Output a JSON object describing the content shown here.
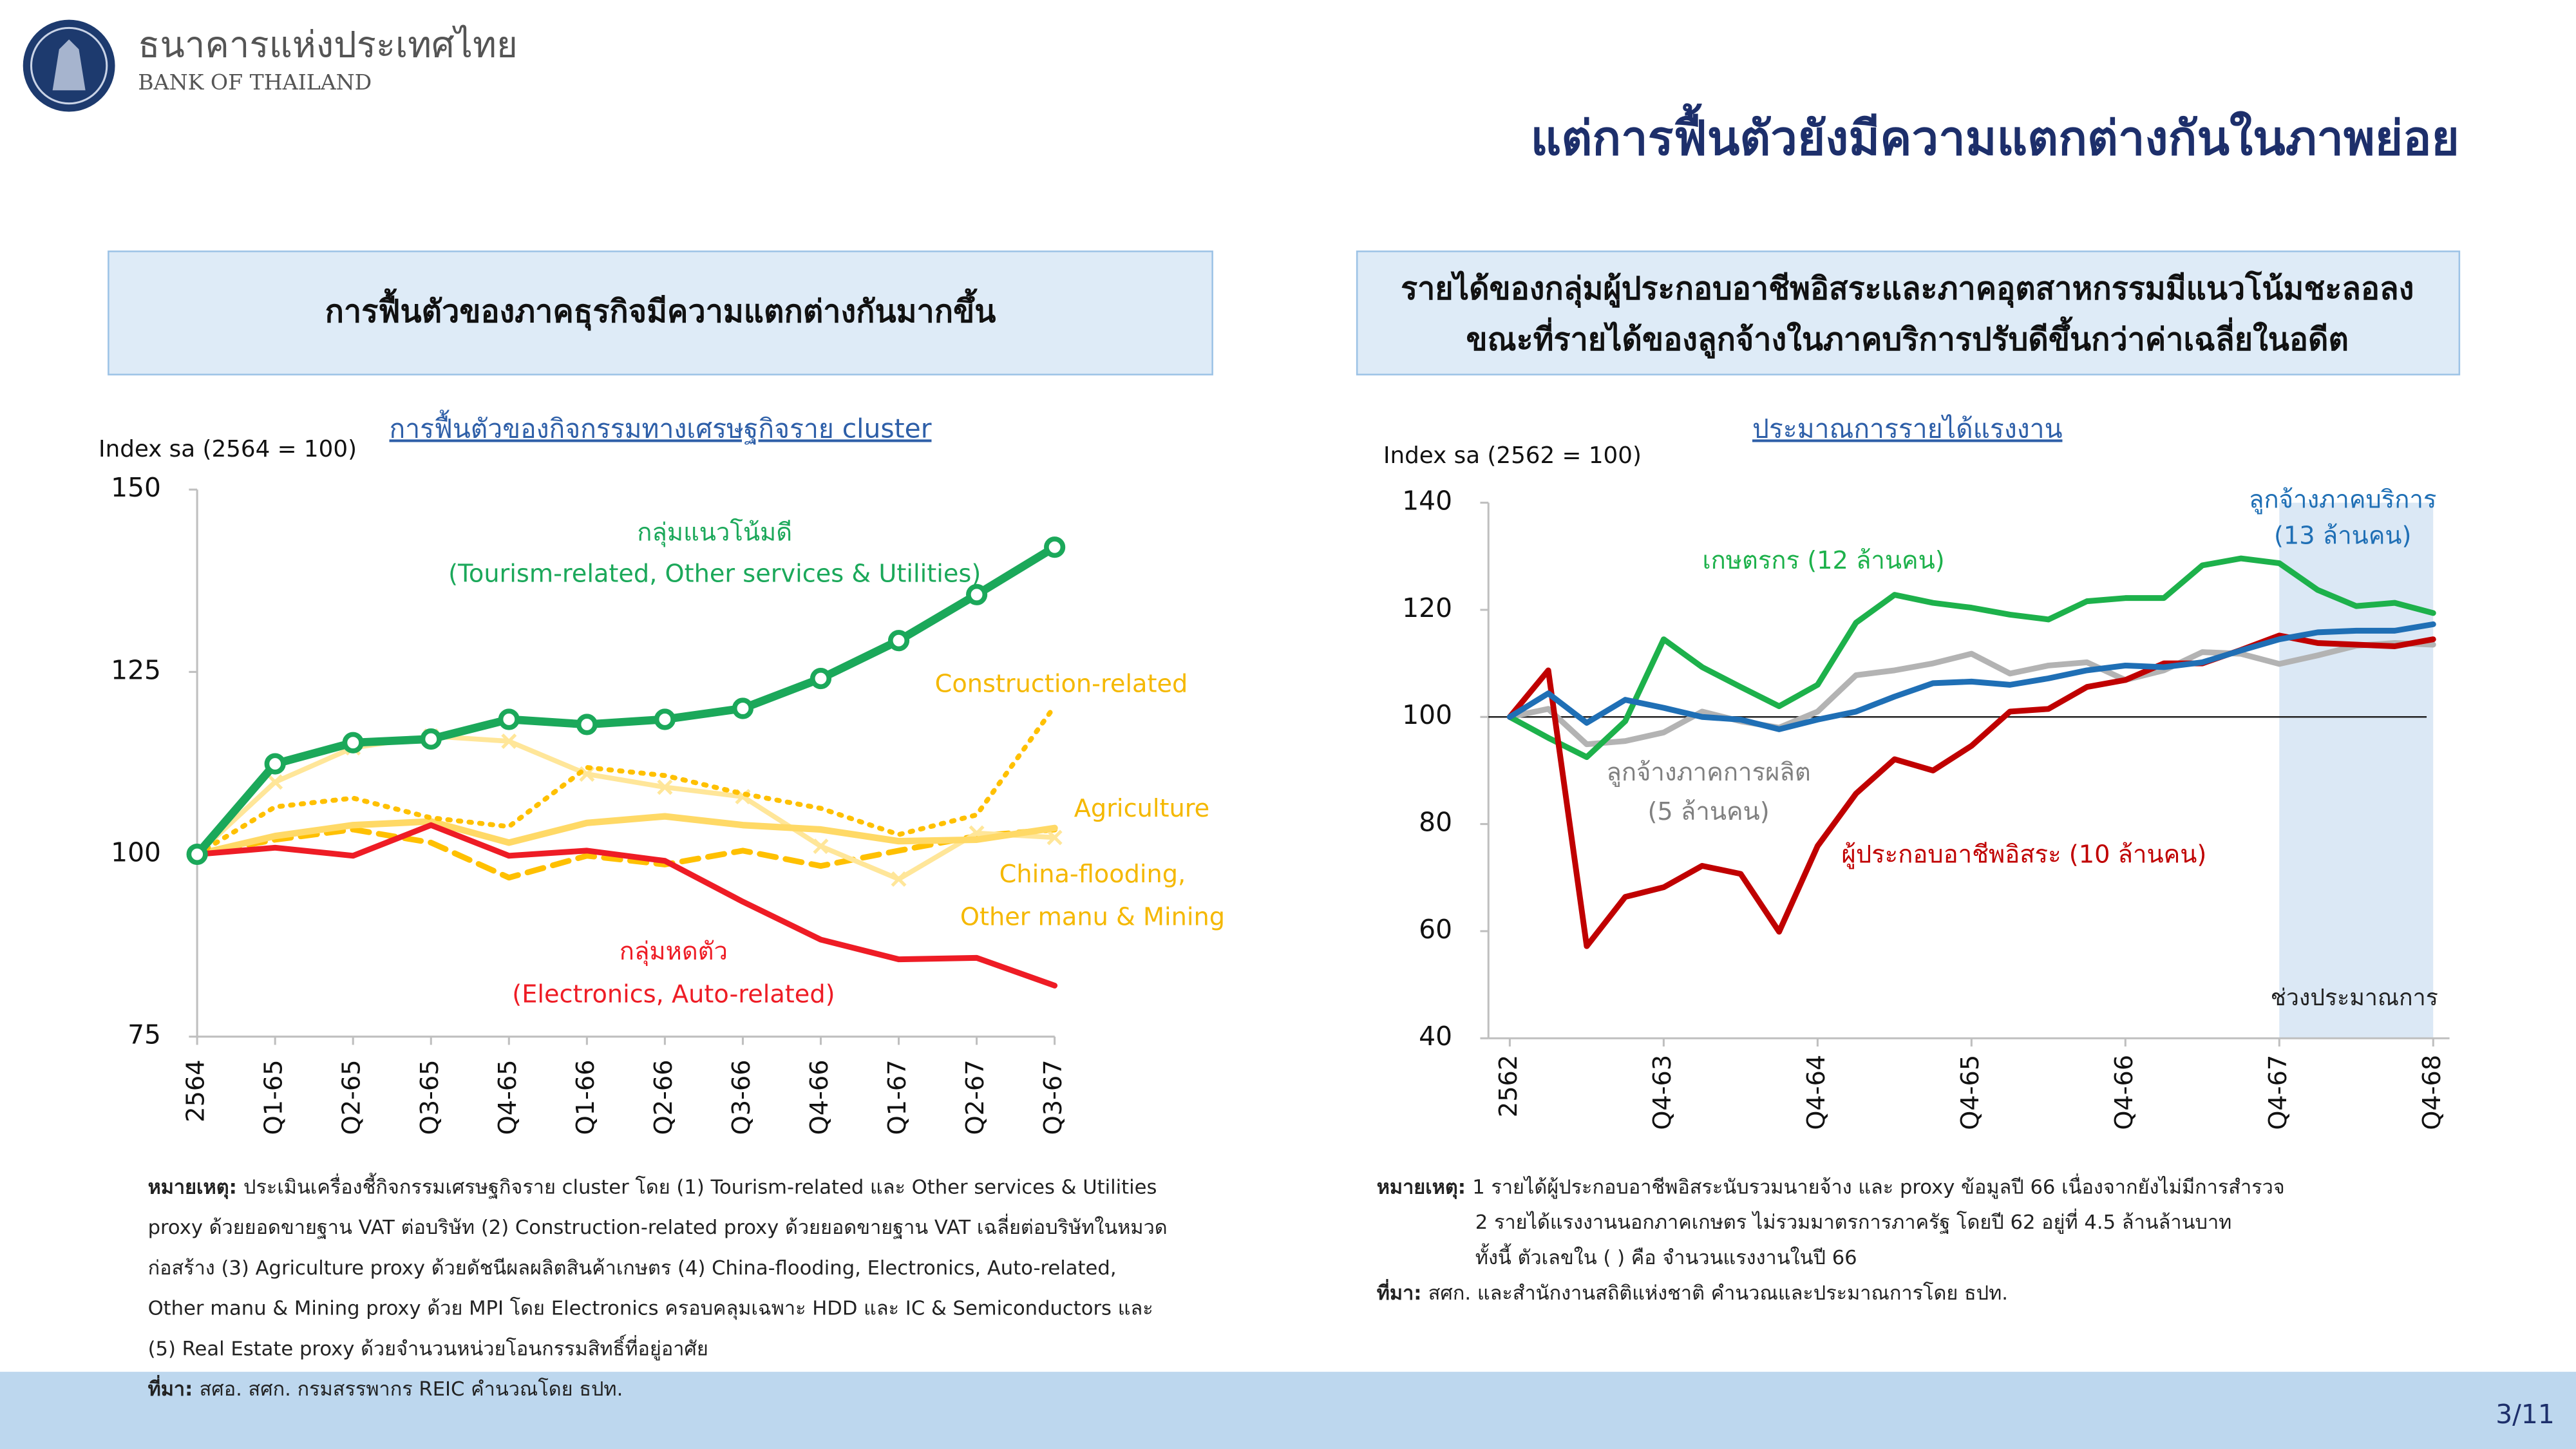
{
  "header": {
    "org_th": "ธนาคารแห่งประเทศไทย",
    "org_en": "BANK OF THAILAND",
    "title": "แต่การฟื้นตัวยังมีความแตกต่างกันในภาพย่อย"
  },
  "page_number": "3/11",
  "chart_data": [
    {
      "type": "line",
      "heading": [
        "การฟื้นตัวของภาคธุรกิจมีความแตกต่างกันมากขึ้น"
      ],
      "title": "การฟื้นตัวของกิจกรรมทางเศรษฐกิจราย cluster",
      "y_label": "Index sa (2564 = 100)",
      "categories": [
        "2564",
        "Q1-65",
        "Q2-65",
        "Q3-65",
        "Q4-65",
        "Q1-66",
        "Q2-66",
        "Q3-66",
        "Q4-66",
        "Q1-67",
        "Q2-67",
        "Q3-67"
      ],
      "ylim": [
        75,
        150
      ],
      "yticks": [
        75,
        100,
        125,
        150
      ],
      "series": [
        {
          "color": "#ffc000",
          "line_style": "dashed",
          "marker": "none",
          "values": [
            100,
            102,
            103.4,
            101.6,
            96.8,
            99.8,
            98.6,
            100.5,
            98.4,
            100.5,
            102.5,
            103.4
          ]
        },
        {
          "label": [
            "China-flooding,",
            "Other manu & Mining"
          ],
          "label_color": "#f5b800",
          "color": "#ffe699",
          "line_style": "solid",
          "marker": "x",
          "values": [
            100,
            109.9,
            114.6,
            116.2,
            115.5,
            111,
            109.2,
            107.9,
            101.1,
            96.6,
            102.9,
            102.3
          ]
        },
        {
          "label": [
            "Agriculture"
          ],
          "label_color": "#f5b800",
          "color": "#ffd966",
          "line_style": "solid",
          "marker": "none",
          "values": [
            100,
            102.5,
            104,
            104.5,
            101.6,
            104.3,
            105.2,
            104,
            103.4,
            101.8,
            102,
            103.6
          ]
        },
        {
          "label": [
            "Construction-related"
          ],
          "label_color": "#f5b800",
          "color": "#ffc000",
          "line_style": "dotted",
          "marker": "none",
          "values": [
            100,
            106.5,
            107.7,
            105,
            103.8,
            111.9,
            110.8,
            108.3,
            106.3,
            102.7,
            105.4,
            120.3
          ]
        },
        {
          "label": [
            "กลุ่มหดตัว",
            "(Electronics, Auto-related)"
          ],
          "label_color": "#ee1c25",
          "color": "#ee1c25",
          "line_style": "solid",
          "marker": "none",
          "values": [
            100,
            100.9,
            99.8,
            104,
            99.8,
            100.5,
            99.1,
            93.5,
            88.3,
            85.6,
            85.8,
            82
          ]
        },
        {
          "label": [
            "กลุ่มแนวโน้มดี",
            "(Tourism-related, Other services & Utilities)"
          ],
          "label_color": "#1ba85a",
          "color": "#1ba85a",
          "line_style": "solid",
          "marker": "circle",
          "values": [
            100,
            112.4,
            115.3,
            115.8,
            118.5,
            117.8,
            118.5,
            120,
            124.1,
            129.3,
            135.6,
            142.1
          ]
        }
      ],
      "notes": {
        "label": "หมายเหตุ:",
        "lines": [
          "ประเมินเครื่องชี้กิจกรรมเศรษฐกิจราย cluster โดย (1) Tourism-related และ Other services & Utilities",
          "proxy ด้วยยอดขายฐาน VAT ต่อบริษัท (2) Construction-related proxy ด้วยยอดขายฐาน VAT เฉลี่ยต่อบริษัทในหมวด",
          "ก่อสร้าง (3) Agriculture proxy ด้วยดัชนีผลผลิตสินค้าเกษตร  (4) China-flooding,  Electronics, Auto-related,",
          "Other manu & Mining proxy ด้วย MPI โดย Electronics ครอบคลุมเฉพาะ HDD และ IC & Semiconductors และ",
          "(5) Real Estate proxy ด้วยจำนวนหน่วยโอนกรรมสิทธิ์ที่อยู่อาศัย"
        ]
      },
      "source": {
        "label": "ที่มา:",
        "text": "สศอ. สศก. กรมสรรพากร REIC คำนวณโดย ธปท."
      }
    },
    {
      "type": "line",
      "heading": [
        "รายได้ของกลุ่มผู้ประกอบอาชีพอิสระและภาคอุตสาหกรรมมีแนวโน้มชะลอลง",
        "ขณะที่รายได้ของลูกจ้างในภาคบริการปรับดีขึ้นกว่าค่าเฉลี่ยในอดีต"
      ],
      "title": "ประมาณการรายได้แรงงาน",
      "y_label": "Index sa (2562 = 100)",
      "categories": [
        "2562",
        null,
        null,
        null,
        "Q4-63",
        null,
        null,
        null,
        "Q4-64",
        null,
        null,
        null,
        "Q4-65",
        null,
        null,
        null,
        "Q4-66",
        null,
        null,
        null,
        "Q4-67",
        null,
        null,
        null,
        "Q4-68"
      ],
      "ylim": [
        40,
        140
      ],
      "yticks": [
        40,
        60,
        80,
        100,
        120,
        140
      ],
      "reference_line": 100,
      "shade_from": "Q4-67",
      "shade_label": "ช่วงประมาณการ",
      "series": [
        {
          "label": [
            "ลูกจ้างภาคการผลิต",
            "(5 ล้านคน)"
          ],
          "label_color": "#808080",
          "color": "#b3b3b3",
          "values": [
            100,
            101.5,
            94.9,
            95.5,
            97.1,
            101,
            99.2,
            98,
            101,
            107.8,
            108.7,
            110,
            111.8,
            108.1,
            109.6,
            110.2,
            106.9,
            108.7,
            112.1,
            111.8,
            109.9,
            111.5,
            113.3,
            113.8,
            113.5
          ]
        },
        {
          "label": [
            "เกษตรกร (12 ล้านคน)"
          ],
          "label_color": "#1db14b",
          "color": "#1db14b",
          "values": [
            100,
            96.1,
            92.5,
            99.2,
            114.5,
            109.3,
            105.6,
            102,
            106,
            117.6,
            122.8,
            121.3,
            120.4,
            119.1,
            118.2,
            121.6,
            122.2,
            122.2,
            128.3,
            129.6,
            128.7,
            123.7,
            120.7,
            121.3,
            119.4
          ]
        },
        {
          "label": [
            "ผู้ประกอบอาชีพอิสระ (10 ล้านคน)"
          ],
          "label_color": "#c00000",
          "color": "#c00000",
          "values": [
            100,
            108.7,
            57.2,
            66.4,
            68.2,
            72.2,
            70.7,
            59.9,
            75.9,
            85.7,
            92.1,
            90,
            94.6,
            101,
            101.5,
            105.6,
            106.9,
            110,
            110,
            112.5,
            115.2,
            113.8,
            113.5,
            113.2,
            114.5
          ]
        },
        {
          "label": [
            "ลูกจ้างภาคบริการ",
            "(13 ล้านคน)"
          ],
          "label_color": "#1f6fb5",
          "color": "#1f6fb5",
          "values": [
            100,
            104.4,
            98.9,
            103.2,
            101.7,
            100,
            99.5,
            97.7,
            99.5,
            101,
            103.8,
            106.3,
            106.6,
            106,
            107.2,
            108.7,
            109.6,
            109.3,
            110.2,
            112.4,
            114.5,
            115.8,
            116.1,
            116.1,
            117.3
          ]
        }
      ],
      "notes": {
        "label": "หมายเหตุ:",
        "lines": [
          "1 รายได้ผู้ประกอบอาชีพอิสระนับรวมนายจ้าง และ proxy ข้อมูลปี 66 เนื่องจากยังไม่มีการสำรวจ",
          "2 รายได้แรงงานนอกภาคเกษตร ไม่รวมมาตรการภาครัฐ โดยปี 62 อยู่ที่ 4.5 ล้านล้านบาท",
          "ทั้งนี้ ตัวเลขใน ( ) คือ จำนวนแรงงานในปี 66"
        ]
      },
      "source": {
        "label": "ที่มา:",
        "text": "สศก. และสำนักงานสถิติแห่งชาติ คำนวณและประมาณการโดย ธปท."
      }
    }
  ]
}
